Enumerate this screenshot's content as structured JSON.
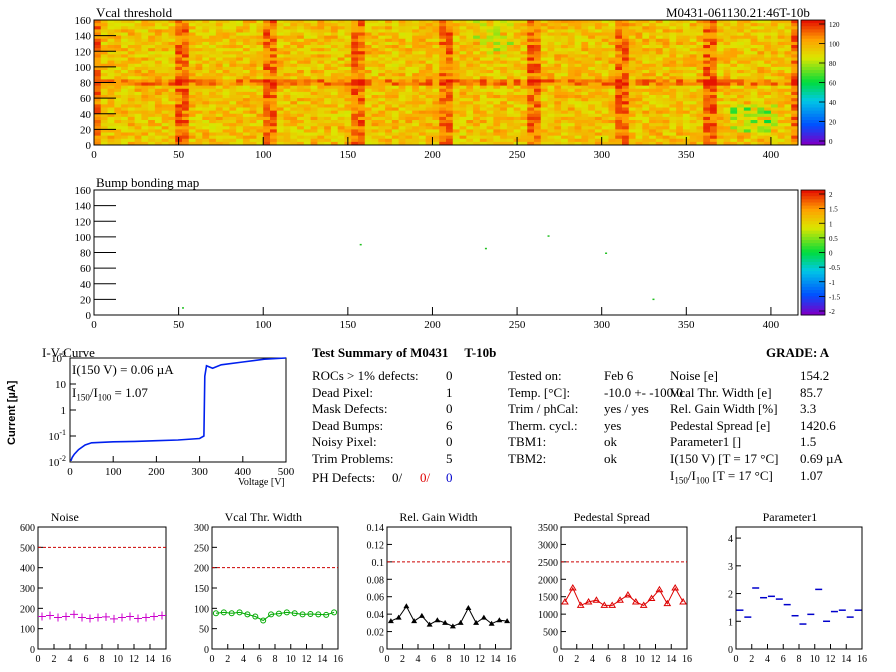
{
  "header": {
    "module_id": "M0431-061130.21:46T-10b"
  },
  "vcal_map": {
    "title": "Vcal threshold",
    "x_ticks": [
      "0",
      "50",
      "100",
      "150",
      "200",
      "250",
      "300",
      "350",
      "400"
    ],
    "y_ticks": [
      "0",
      "20",
      "40",
      "60",
      "80",
      "100",
      "120",
      "140",
      "160"
    ],
    "z_ticks": [
      "120",
      "100",
      "80",
      "60",
      "40",
      "20",
      "0"
    ]
  },
  "bump_map": {
    "title": "Bump bonding map",
    "x_ticks": [
      "0",
      "50",
      "100",
      "150",
      "200",
      "250",
      "300",
      "350",
      "400"
    ],
    "y_ticks": [
      "0",
      "20",
      "40",
      "60",
      "80",
      "100",
      "120",
      "140",
      "160"
    ],
    "z_ticks": [
      "2",
      "1.5",
      "1",
      "0.5",
      "0",
      "-0.5",
      "-1",
      "-1.5",
      "-2"
    ],
    "dots": [
      [
        52,
        10
      ],
      [
        157,
        91
      ],
      [
        231,
        86
      ],
      [
        268,
        102
      ],
      [
        302,
        80
      ],
      [
        330,
        21
      ]
    ]
  },
  "iv_curve": {
    "title": "I-V-Curve",
    "ylabel": "Current [µA]",
    "xlabel": "Voltage [V]",
    "annot1": "I(150 V) = 0.06 µA",
    "annot2_pre": "I",
    "annot2_sub1": "150",
    "annot2_mid": "/I",
    "annot2_sub2": "100",
    "annot2_post": " =  1.07",
    "x_ticks": [
      "0",
      "100",
      "200",
      "300",
      "400",
      "500"
    ]
  },
  "summary": {
    "title": "Test Summary of M0431",
    "tag": "T-10b",
    "grade_label": "GRADE:  A",
    "left_rows": [
      {
        "label": "ROCs > 1% defects:",
        "value": "0"
      },
      {
        "label": "Dead Pixel:",
        "value": "1"
      },
      {
        "label": "Mask Defects:",
        "value": "0"
      },
      {
        "label": "Dead Bumps:",
        "value": "6"
      },
      {
        "label": "Noisy Pixel:",
        "value": "0"
      },
      {
        "label": "Trim Problems:",
        "value": "5"
      }
    ],
    "ph_label": "PH Defects:",
    "ph_v1": "0/",
    "ph_v2": "0/",
    "ph_v3": "0",
    "ph_colors": [
      "#000000",
      "#e00000",
      "#0000cc"
    ],
    "mid_rows": [
      {
        "label": "Tested on:",
        "value": "Feb 6"
      },
      {
        "label": "Temp. [°C]:",
        "value": "-10.0 +- -100.0"
      },
      {
        "label": "Trim / phCal:",
        "value": "yes / yes"
      },
      {
        "label": "Therm. cycl.:",
        "value": "yes"
      },
      {
        "label": "TBM1:",
        "value": "ok"
      },
      {
        "label": "TBM2:",
        "value": "ok"
      }
    ],
    "right_rows": [
      {
        "label": "Noise [e]",
        "value": "154.2"
      },
      {
        "label": "Vcal Thr. Width [e]",
        "value": "85.7"
      },
      {
        "label": "Rel. Gain Width [%]",
        "value": "3.3"
      },
      {
        "label": "Pedestal Spread [e]",
        "value": "1420.6"
      },
      {
        "label": "Parameter1 []",
        "value": "1.5"
      },
      {
        "label": "I(150 V) [T = 17 °C]",
        "value": "0.69 µA"
      }
    ],
    "ratio_label_pre": "I",
    "ratio_sub1": "150",
    "ratio_mid": "/I",
    "ratio_sub2": "100",
    "ratio_post": "   [T = 17 °C]",
    "ratio_value": "1.07"
  },
  "chart_data": [
    {
      "type": "scatter",
      "title": "Noise",
      "xlim": [
        0,
        16
      ],
      "ylim": [
        0,
        600
      ],
      "y_ticks": [
        "0",
        "100",
        "200",
        "300",
        "400",
        "500",
        "600"
      ],
      "x_ticks": [
        "0",
        "2",
        "4",
        "6",
        "8",
        "10",
        "12",
        "14",
        "16"
      ],
      "cut": 500,
      "color": "#cc00cc",
      "marker": "cross",
      "connect": false,
      "x": [
        0.5,
        1.5,
        2.5,
        3.5,
        4.5,
        5.5,
        6.5,
        7.5,
        8.5,
        9.5,
        10.5,
        11.5,
        12.5,
        13.5,
        14.5,
        15.5
      ],
      "values": [
        160,
        165,
        155,
        160,
        170,
        155,
        150,
        155,
        158,
        148,
        155,
        160,
        150,
        155,
        160,
        165
      ]
    },
    {
      "type": "line",
      "title": "Vcal Thr. Width",
      "xlim": [
        0,
        16
      ],
      "ylim": [
        0,
        300
      ],
      "y_ticks": [
        "0",
        "50",
        "100",
        "150",
        "200",
        "250",
        "300"
      ],
      "x_ticks": [
        "0",
        "2",
        "4",
        "6",
        "8",
        "10",
        "12",
        "14",
        "16"
      ],
      "cut": 200,
      "color": "#00aa00",
      "marker": "circle",
      "connect": true,
      "x": [
        0.5,
        1.5,
        2.5,
        3.5,
        4.5,
        5.5,
        6.5,
        7.5,
        8.5,
        9.5,
        10.5,
        11.5,
        12.5,
        13.5,
        14.5,
        15.5
      ],
      "values": [
        88,
        90,
        88,
        90,
        85,
        80,
        70,
        85,
        87,
        90,
        88,
        85,
        86,
        85,
        84,
        90
      ]
    },
    {
      "type": "line",
      "title": "Rel. Gain Width",
      "xlim": [
        0,
        16
      ],
      "ylim": [
        0,
        0.14
      ],
      "y_ticks": [
        "0",
        "0.02",
        "0.04",
        "0.06",
        "0.08",
        "0.1",
        "0.12",
        "0.14"
      ],
      "x_ticks": [
        "0",
        "2",
        "4",
        "6",
        "8",
        "10",
        "12",
        "14",
        "16"
      ],
      "cut": 0.1,
      "color": "#000000",
      "marker": "triangle",
      "connect": true,
      "x": [
        0.5,
        1.5,
        2.5,
        3.5,
        4.5,
        5.5,
        6.5,
        7.5,
        8.5,
        9.5,
        10.5,
        11.5,
        12.5,
        13.5,
        14.5,
        15.5
      ],
      "values": [
        0.032,
        0.036,
        0.049,
        0.032,
        0.038,
        0.028,
        0.033,
        0.03,
        0.026,
        0.03,
        0.047,
        0.03,
        0.036,
        0.029,
        0.033,
        0.032
      ]
    },
    {
      "type": "line",
      "title": "Pedestal Spread",
      "xlim": [
        0,
        16
      ],
      "ylim": [
        0,
        3500
      ],
      "y_ticks": [
        "0",
        "500",
        "1000",
        "1500",
        "2000",
        "2500",
        "3000",
        "3500"
      ],
      "x_ticks": [
        "0",
        "2",
        "4",
        "6",
        "8",
        "10",
        "12",
        "14",
        "16"
      ],
      "cut": 2500,
      "color": "#dd0000",
      "marker": "triangle-open",
      "connect": true,
      "x": [
        0.5,
        1.5,
        2.5,
        3.5,
        4.5,
        5.5,
        6.5,
        7.5,
        8.5,
        9.5,
        10.5,
        11.5,
        12.5,
        13.5,
        14.5,
        15.5
      ],
      "values": [
        1350,
        1750,
        1250,
        1350,
        1400,
        1250,
        1250,
        1400,
        1550,
        1350,
        1250,
        1450,
        1700,
        1300,
        1750,
        1350
      ]
    },
    {
      "type": "scatter",
      "title": "Parameter1",
      "xlim": [
        0,
        16
      ],
      "ylim": [
        0,
        4.4
      ],
      "y_ticks": [
        "0",
        "1",
        "2",
        "3",
        "4"
      ],
      "x_ticks": [
        "0",
        "2",
        "4",
        "6",
        "8",
        "10",
        "12",
        "14",
        "16"
      ],
      "cut": null,
      "color": "#0000cc",
      "marker": "hbar",
      "connect": false,
      "x": [
        0.5,
        1.5,
        2.5,
        3.5,
        4.5,
        5.5,
        6.5,
        7.5,
        8.5,
        9.5,
        10.5,
        11.5,
        12.5,
        13.5,
        14.5,
        15.5
      ],
      "values": [
        1.4,
        1.15,
        2.2,
        1.85,
        1.9,
        1.8,
        1.6,
        1.2,
        0.9,
        1.25,
        2.15,
        1.0,
        1.35,
        1.4,
        1.15,
        1.4
      ]
    }
  ]
}
